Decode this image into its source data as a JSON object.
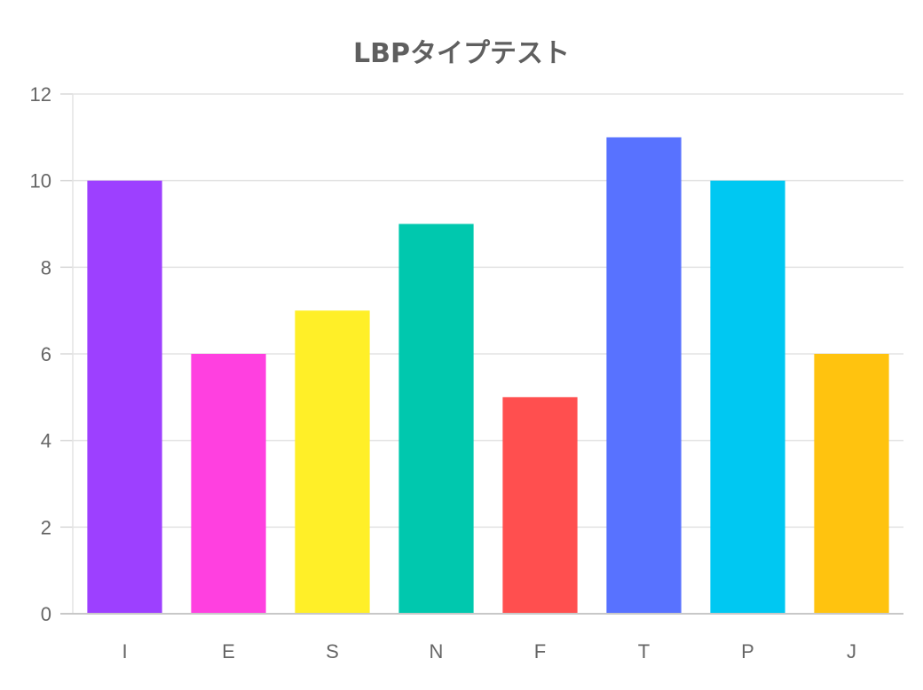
{
  "chart_data": {
    "type": "bar",
    "title": "LBPタイプテスト",
    "xlabel": "",
    "ylabel": "",
    "categories": [
      "I",
      "E",
      "S",
      "N",
      "F",
      "T",
      "P",
      "J"
    ],
    "values": [
      10,
      6,
      7,
      9,
      5,
      11,
      10,
      6
    ],
    "colors": [
      "#9d40ff",
      "#ff40e0",
      "#ffef28",
      "#00c8ae",
      "#ff4f4f",
      "#5872ff",
      "#00c8f2",
      "#ffc30f"
    ],
    "ylim": [
      0,
      12
    ],
    "yticks": [
      0,
      2,
      4,
      6,
      8,
      10,
      12
    ],
    "grid": true,
    "legend": "none"
  }
}
